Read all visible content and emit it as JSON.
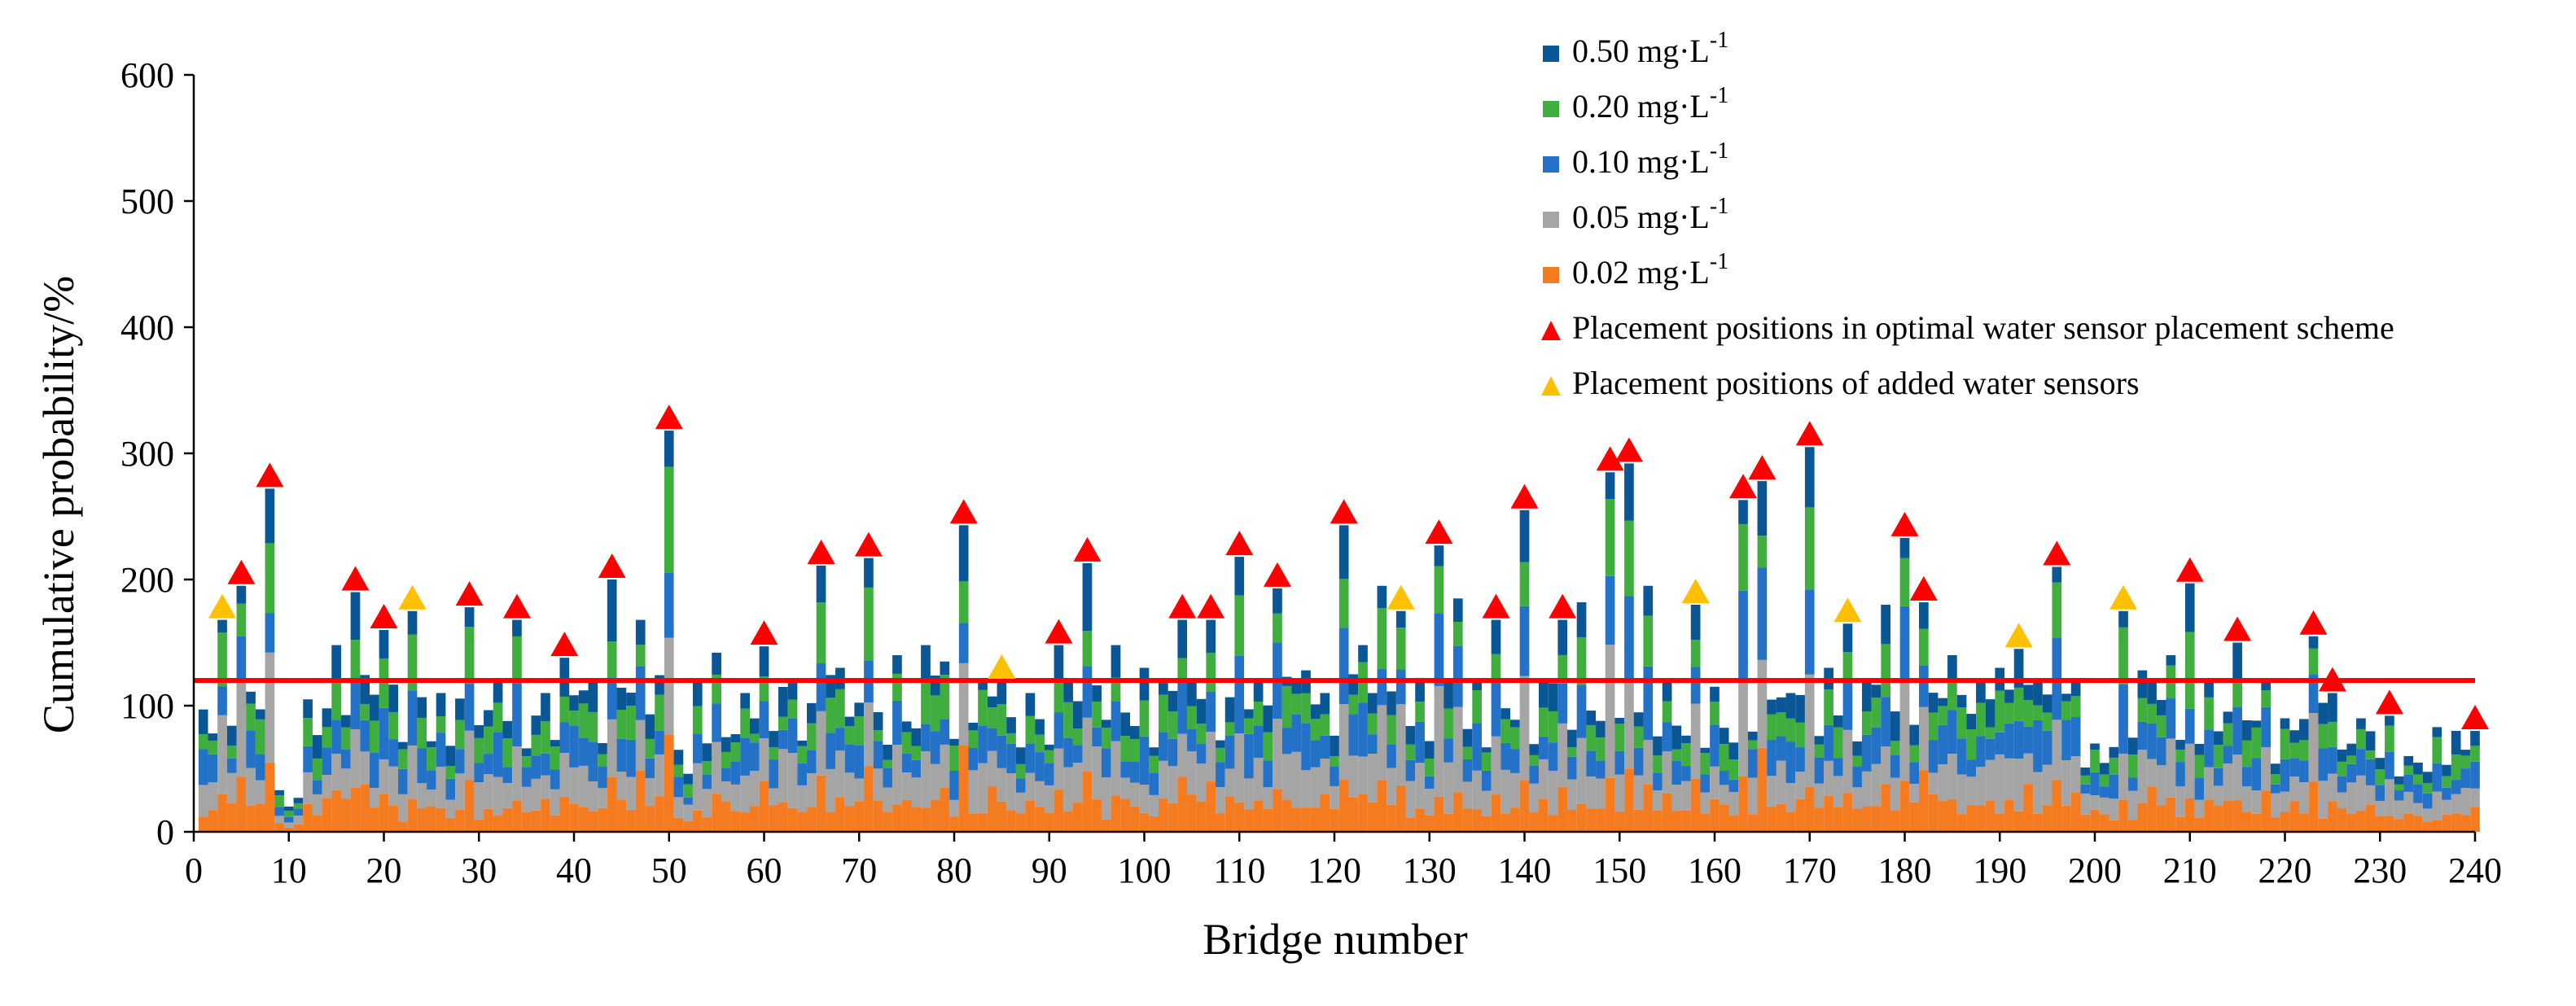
{
  "chart_data": {
    "type": "bar",
    "stacked": true,
    "xlabel": "Bridge number",
    "ylabel": "Cumulative probability/%",
    "ylim": [
      0,
      600
    ],
    "yticks": [
      0,
      100,
      200,
      300,
      400,
      500,
      600
    ],
    "xlim": [
      0,
      240
    ],
    "xticks": [
      0,
      10,
      20,
      30,
      40,
      50,
      60,
      70,
      80,
      90,
      100,
      110,
      120,
      130,
      140,
      150,
      160,
      170,
      180,
      190,
      200,
      210,
      220,
      230,
      240
    ],
    "grid": false,
    "legend_position": "top-right",
    "reference_line": {
      "y": 120,
      "color": "#ff0000"
    },
    "series": [
      {
        "name": "0.02",
        "unit_base": "mg·L",
        "unit_exp": "-1",
        "color": "#f47b20"
      },
      {
        "name": "0.05",
        "unit_base": "mg·L",
        "unit_exp": "-1",
        "color": "#a5a5a5"
      },
      {
        "name": "0.10",
        "unit_base": "mg·L",
        "unit_exp": "-1",
        "color": "#2472c8"
      },
      {
        "name": "0.20",
        "unit_base": "mg·L",
        "unit_exp": "-1",
        "color": "#3fae3f"
      },
      {
        "name": "0.50",
        "unit_base": "mg·L",
        "unit_exp": "-1",
        "color": "#0b5694"
      }
    ],
    "totals_peaks": [
      [
        1,
        97
      ],
      [
        3,
        168
      ],
      [
        5,
        195
      ],
      [
        8,
        272
      ],
      [
        9,
        33
      ],
      [
        12,
        105
      ],
      [
        15,
        148
      ],
      [
        17,
        190
      ],
      [
        20,
        160
      ],
      [
        23,
        175
      ],
      [
        26,
        110
      ],
      [
        29,
        178
      ],
      [
        32,
        120
      ],
      [
        34,
        168
      ],
      [
        37,
        110
      ],
      [
        39,
        138
      ],
      [
        42,
        120
      ],
      [
        44,
        200
      ],
      [
        47,
        168
      ],
      [
        50,
        318
      ],
      [
        51,
        65
      ],
      [
        53,
        120
      ],
      [
        55,
        142
      ],
      [
        58,
        110
      ],
      [
        60,
        147
      ],
      [
        63,
        118
      ],
      [
        66,
        211
      ],
      [
        68,
        130
      ],
      [
        71,
        217
      ],
      [
        74,
        140
      ],
      [
        77,
        148
      ],
      [
        79,
        135
      ],
      [
        81,
        243
      ],
      [
        83,
        120
      ],
      [
        85,
        120
      ],
      [
        88,
        110
      ],
      [
        91,
        148
      ],
      [
        94,
        213
      ],
      [
        97,
        148
      ],
      [
        100,
        130
      ],
      [
        102,
        118
      ],
      [
        104,
        168
      ],
      [
        107,
        168
      ],
      [
        110,
        218
      ],
      [
        112,
        120
      ],
      [
        114,
        193
      ],
      [
        117,
        128
      ],
      [
        119,
        110
      ],
      [
        121,
        243
      ],
      [
        123,
        148
      ],
      [
        125,
        195
      ],
      [
        127,
        175
      ],
      [
        129,
        122
      ],
      [
        131,
        227
      ],
      [
        133,
        185
      ],
      [
        135,
        120
      ],
      [
        137,
        168
      ],
      [
        140,
        255
      ],
      [
        142,
        120
      ],
      [
        144,
        168
      ],
      [
        146,
        182
      ],
      [
        149,
        285
      ],
      [
        151,
        292
      ],
      [
        153,
        195
      ],
      [
        155,
        120
      ],
      [
        158,
        180
      ],
      [
        160,
        115
      ],
      [
        163,
        263
      ],
      [
        165,
        278
      ],
      [
        168,
        110
      ],
      [
        170,
        305
      ],
      [
        172,
        130
      ],
      [
        174,
        165
      ],
      [
        176,
        120
      ],
      [
        178,
        180
      ],
      [
        180,
        233
      ],
      [
        182,
        182
      ],
      [
        185,
        140
      ],
      [
        188,
        120
      ],
      [
        190,
        130
      ],
      [
        192,
        145
      ],
      [
        194,
        120
      ],
      [
        196,
        210
      ],
      [
        198,
        120
      ],
      [
        200,
        70
      ],
      [
        203,
        175
      ],
      [
        205,
        128
      ],
      [
        208,
        140
      ],
      [
        210,
        197
      ],
      [
        212,
        120
      ],
      [
        215,
        150
      ],
      [
        218,
        120
      ],
      [
        220,
        90
      ],
      [
        223,
        155
      ],
      [
        225,
        110
      ],
      [
        228,
        90
      ],
      [
        231,
        92
      ],
      [
        233,
        60
      ],
      [
        236,
        83
      ],
      [
        238,
        80
      ],
      [
        240,
        80
      ]
    ],
    "optimal_markers": [
      5,
      8,
      17,
      20,
      29,
      34,
      39,
      44,
      50,
      60,
      66,
      71,
      81,
      91,
      94,
      104,
      107,
      110,
      114,
      121,
      131,
      137,
      140,
      144,
      149,
      151,
      163,
      165,
      170,
      180,
      182,
      196,
      210,
      215,
      223,
      225,
      231,
      240
    ],
    "added_markers": [
      3,
      23,
      85,
      127,
      158,
      174,
      192,
      203
    ]
  },
  "legend": {
    "marker_optimal_label": "Placement positions in optimal water sensor placement scheme",
    "marker_added_label": "Placement positions of added water sensors",
    "marker_optimal_color": "#ff0000",
    "marker_added_color": "#ffc000"
  }
}
